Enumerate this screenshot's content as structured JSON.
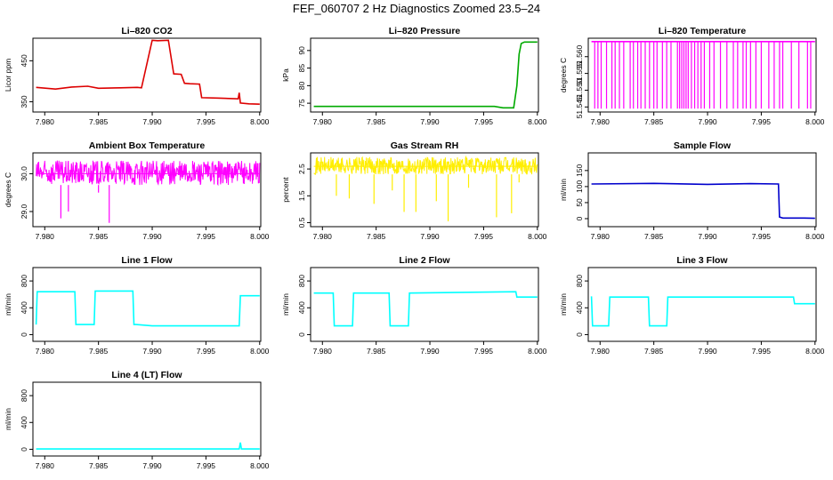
{
  "figure": {
    "title": "FEF_060707  2 Hz Diagnostics Zoomed 23.5–24"
  },
  "chart_data": [
    {
      "type": "line",
      "title": "Li–820 CO2",
      "ylabel": "Licor ppm",
      "xlabel": "",
      "color": "#dd0000",
      "xlim": [
        7.9789,
        8.0001
      ],
      "ylim": [
        325,
        505
      ],
      "xticks": [
        "7.980",
        "7.985",
        "7.990",
        "7.995",
        "8.000"
      ],
      "yticks": [
        350,
        450
      ],
      "x": [
        7.9792,
        7.981,
        7.9825,
        7.984,
        7.985,
        7.987,
        7.9886,
        7.989,
        7.99,
        7.9905,
        7.9915,
        7.992,
        7.9927,
        7.993,
        7.9935,
        7.9944,
        7.9946,
        7.996,
        7.998,
        7.9981,
        7.9982,
        7.999,
        8.0
      ],
      "y": [
        385,
        381,
        386,
        388,
        383,
        384,
        385,
        384,
        500,
        499,
        500,
        418,
        417,
        395,
        394,
        393,
        360,
        359,
        357,
        372,
        347,
        345,
        344
      ]
    },
    {
      "type": "line",
      "title": "Li–820 Pressure",
      "ylabel": "kPa",
      "xlabel": "",
      "color": "#00aa00",
      "xlim": [
        7.9789,
        8.0001
      ],
      "ylim": [
        72.5,
        93.5
      ],
      "xticks": [
        "7.980",
        "7.985",
        "7.990",
        "7.995",
        "8.000"
      ],
      "yticks": [
        75,
        80,
        85,
        90
      ],
      "x": [
        7.9792,
        7.99,
        7.996,
        7.9968,
        7.9978,
        7.9981,
        7.9983,
        7.9985,
        7.9988,
        8.0
      ],
      "y": [
        74.1,
        74.1,
        74.1,
        73.7,
        73.7,
        80,
        89,
        92,
        92.4,
        92.4
      ]
    },
    {
      "type": "line",
      "title": "Li–820 Temperature",
      "ylabel": "degrees C",
      "xlabel": "",
      "color": "#ff00ff",
      "xlim": [
        7.9789,
        8.0001
      ],
      "ylim": [
        51.5435,
        51.5655
      ],
      "xticks": [
        "7.980",
        "7.985",
        "7.990",
        "7.995",
        "8.000"
      ],
      "yticks": [
        51.545,
        51.55,
        51.555,
        51.56
      ],
      "ytick_labels": [
        "51.545",
        "51.550",
        "51.555",
        "51.560"
      ],
      "x": [
        7.9792,
        8.0
      ],
      "y": [
        51.5645,
        51.5645
      ],
      "spikes_x": [
        7.9795,
        7.9798,
        7.9801,
        7.9806,
        7.9811,
        7.9814,
        7.9818,
        7.9822,
        7.9828,
        7.9831,
        7.9835,
        7.9838,
        7.9842,
        7.9846,
        7.985,
        7.9853,
        7.9858,
        7.9862,
        7.9866,
        7.9872,
        7.9874,
        7.9876,
        7.9878,
        7.988,
        7.9882,
        7.9885,
        7.9888,
        7.9891,
        7.9894,
        7.9897,
        7.9902,
        7.9906,
        7.9912,
        7.9918,
        7.9924,
        7.9928,
        7.9933,
        7.9936,
        7.994,
        7.9945,
        7.995,
        7.9957,
        7.9962,
        7.9967,
        7.997,
        7.9978,
        7.9985,
        7.9993,
        7.9996
      ],
      "spikes_low": 51.5445
    },
    {
      "type": "line",
      "title": "Ambient Box Temperature",
      "ylabel": "degrees C",
      "xlabel": "",
      "color": "#ff00ff",
      "xlim": [
        7.9789,
        8.0001
      ],
      "ylim": [
        28.6,
        30.55
      ],
      "xticks": [
        "7.980",
        "7.985",
        "7.990",
        "7.995",
        "8.000"
      ],
      "yticks": [
        29.0,
        30.0
      ],
      "ytick_labels": [
        "29.0",
        "30.0"
      ],
      "x": [
        7.9792,
        8.0
      ],
      "y": [
        30.0,
        30.0
      ],
      "band": [
        29.7,
        30.35
      ],
      "spikes_x": [
        7.9815,
        7.9822,
        7.985,
        7.986
      ],
      "spikes_low": [
        28.82,
        29.0,
        29.5,
        28.7
      ]
    },
    {
      "type": "line",
      "title": "Gas Stream RH",
      "ylabel": "percent",
      "xlabel": "",
      "color": "#ffee00",
      "xlim": [
        7.9789,
        8.0001
      ],
      "ylim": [
        0.35,
        3.1
      ],
      "xticks": [
        "7.980",
        "7.985",
        "7.990",
        "7.995",
        "8.000"
      ],
      "yticks": [
        0.5,
        1.5,
        2.5
      ],
      "ytick_labels": [
        "0.5",
        "1.5",
        "2.5"
      ],
      "x": [
        7.9792,
        8.0
      ],
      "y": [
        2.6,
        2.6
      ],
      "band": [
        2.3,
        2.95
      ],
      "spikes_x": [
        7.9813,
        7.9825,
        7.9848,
        7.9865,
        7.9876,
        7.9887,
        7.9906,
        7.9917,
        7.9936,
        7.9962,
        7.9976,
        7.9983
      ],
      "spikes_low": [
        1.5,
        1.4,
        1.2,
        1.7,
        0.9,
        0.9,
        1.3,
        0.55,
        1.8,
        0.7,
        0.85,
        2.0
      ]
    },
    {
      "type": "line",
      "title": "Sample Flow",
      "ylabel": "ml/min",
      "xlabel": "",
      "color": "#0000cc",
      "xlim": [
        7.9789,
        8.0001
      ],
      "ylim": [
        -25,
        205
      ],
      "xticks": [
        "7.980",
        "7.985",
        "7.990",
        "7.995",
        "8.000"
      ],
      "yticks": [
        0,
        50,
        100,
        150
      ],
      "x": [
        7.9792,
        7.985,
        7.99,
        7.994,
        7.9966,
        7.9967,
        7.997,
        7.999,
        8.0
      ],
      "y": [
        108,
        110,
        107,
        109,
        108,
        5,
        2,
        2,
        1
      ]
    },
    {
      "type": "line",
      "title": "Line 1 Flow",
      "ylabel": "ml/min",
      "xlabel": "",
      "color": "#00ffff",
      "xlim": [
        7.9789,
        8.0001
      ],
      "ylim": [
        -100,
        1000
      ],
      "xticks": [
        "7.980",
        "7.985",
        "7.990",
        "7.995",
        "8.000"
      ],
      "yticks": [
        0,
        400,
        800
      ],
      "x": [
        7.9792,
        7.9793,
        7.9828,
        7.9829,
        7.9846,
        7.9847,
        7.9882,
        7.9883,
        7.9885,
        7.99,
        7.9981,
        7.9982,
        8.0
      ],
      "y": [
        150,
        640,
        640,
        150,
        150,
        650,
        650,
        150,
        150,
        130,
        130,
        580,
        580
      ]
    },
    {
      "type": "line",
      "title": "Line 2 Flow",
      "ylabel": "ml/min",
      "xlabel": "",
      "color": "#00ffff",
      "xlim": [
        7.9789,
        8.0001
      ],
      "ylim": [
        -100,
        1000
      ],
      "xticks": [
        "7.980",
        "7.985",
        "7.990",
        "7.995",
        "8.000"
      ],
      "yticks": [
        0,
        400,
        800
      ],
      "x": [
        7.9792,
        7.981,
        7.9811,
        7.9828,
        7.9829,
        7.9862,
        7.9863,
        7.988,
        7.9881,
        7.998,
        7.9981,
        8.0
      ],
      "y": [
        620,
        620,
        130,
        130,
        620,
        620,
        130,
        130,
        620,
        640,
        560,
        560
      ]
    },
    {
      "type": "line",
      "title": "Line 3 Flow",
      "ylabel": "ml/min",
      "xlabel": "",
      "color": "#00ffff",
      "xlim": [
        7.9789,
        8.0001
      ],
      "ylim": [
        -100,
        1000
      ],
      "xticks": [
        "7.980",
        "7.985",
        "7.990",
        "7.995",
        "8.000"
      ],
      "yticks": [
        0,
        400,
        800
      ],
      "x": [
        7.9792,
        7.9793,
        7.9808,
        7.9809,
        7.9845,
        7.9846,
        7.9862,
        7.9863,
        7.998,
        7.9981,
        8.0
      ],
      "y": [
        570,
        130,
        130,
        560,
        560,
        130,
        130,
        560,
        560,
        460,
        460
      ]
    },
    {
      "type": "line",
      "title": "Line 4 (LT) Flow",
      "ylabel": "ml/min",
      "xlabel": "",
      "color": "#00ffff",
      "xlim": [
        7.9789,
        8.0001
      ],
      "ylim": [
        -100,
        1000
      ],
      "xticks": [
        "7.980",
        "7.985",
        "7.990",
        "7.995",
        "8.000"
      ],
      "yticks": [
        0,
        400,
        800
      ],
      "x": [
        7.9792,
        7.9981,
        7.9982,
        7.9983,
        8.0
      ],
      "y": [
        5,
        5,
        100,
        5,
        5
      ]
    }
  ]
}
